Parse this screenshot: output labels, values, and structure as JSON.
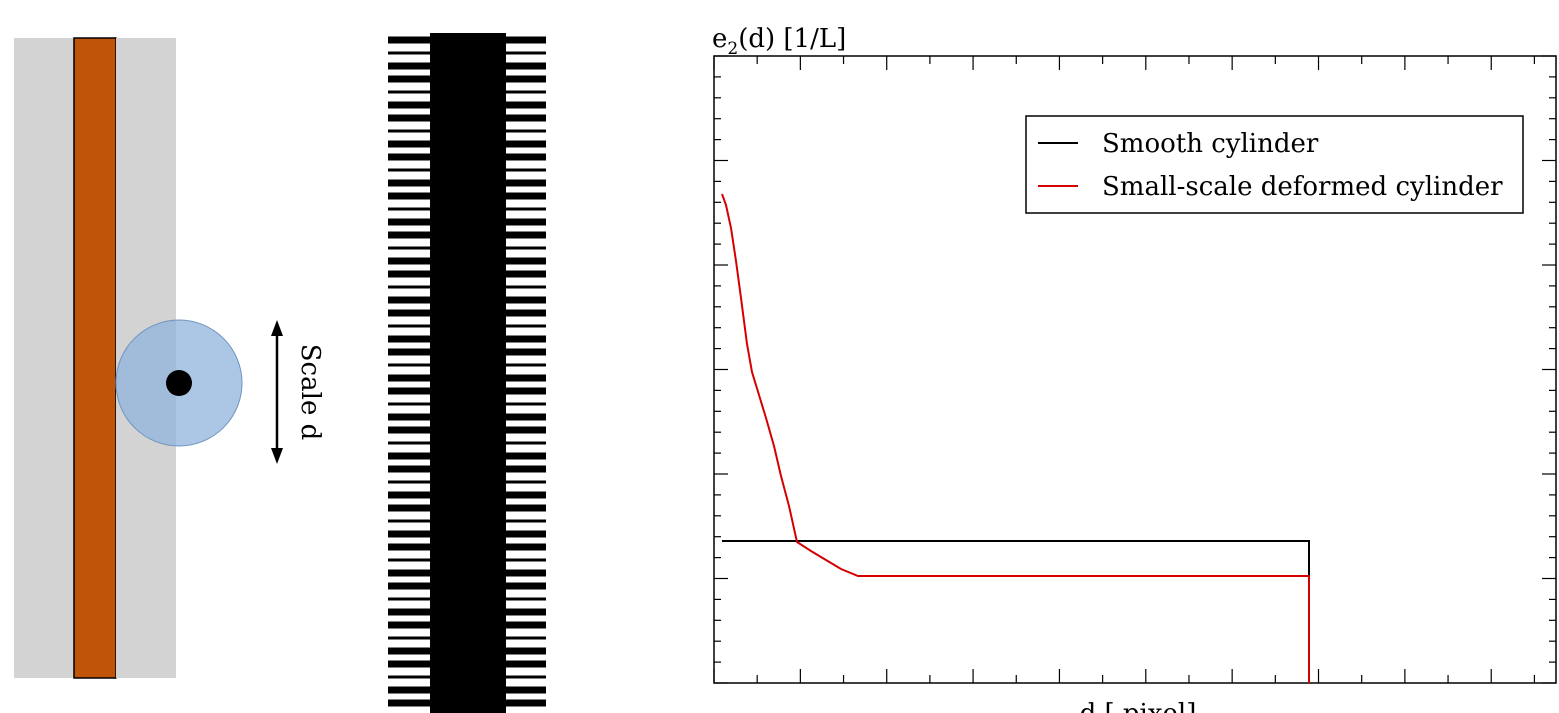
{
  "diagram": {
    "scale_label": "Scale d"
  },
  "chart_data": {
    "type": "line",
    "title": "",
    "ylabel_main": "e",
    "ylabel_sub": "2",
    "ylabel_rest": "(d) [1/L]",
    "xlabel": "d [ pixel]",
    "legend_placement": "top-right",
    "grid": false,
    "series": [
      {
        "name": "Smooth cylinder",
        "color": "#000000"
      },
      {
        "name": "Small-scale deformed cylinder",
        "color": "#d40000"
      }
    ]
  },
  "colors": {
    "orange": "#c0550a",
    "gray": "#d3d3d3",
    "circle": "#8fb4dc",
    "red": "#d40000"
  }
}
